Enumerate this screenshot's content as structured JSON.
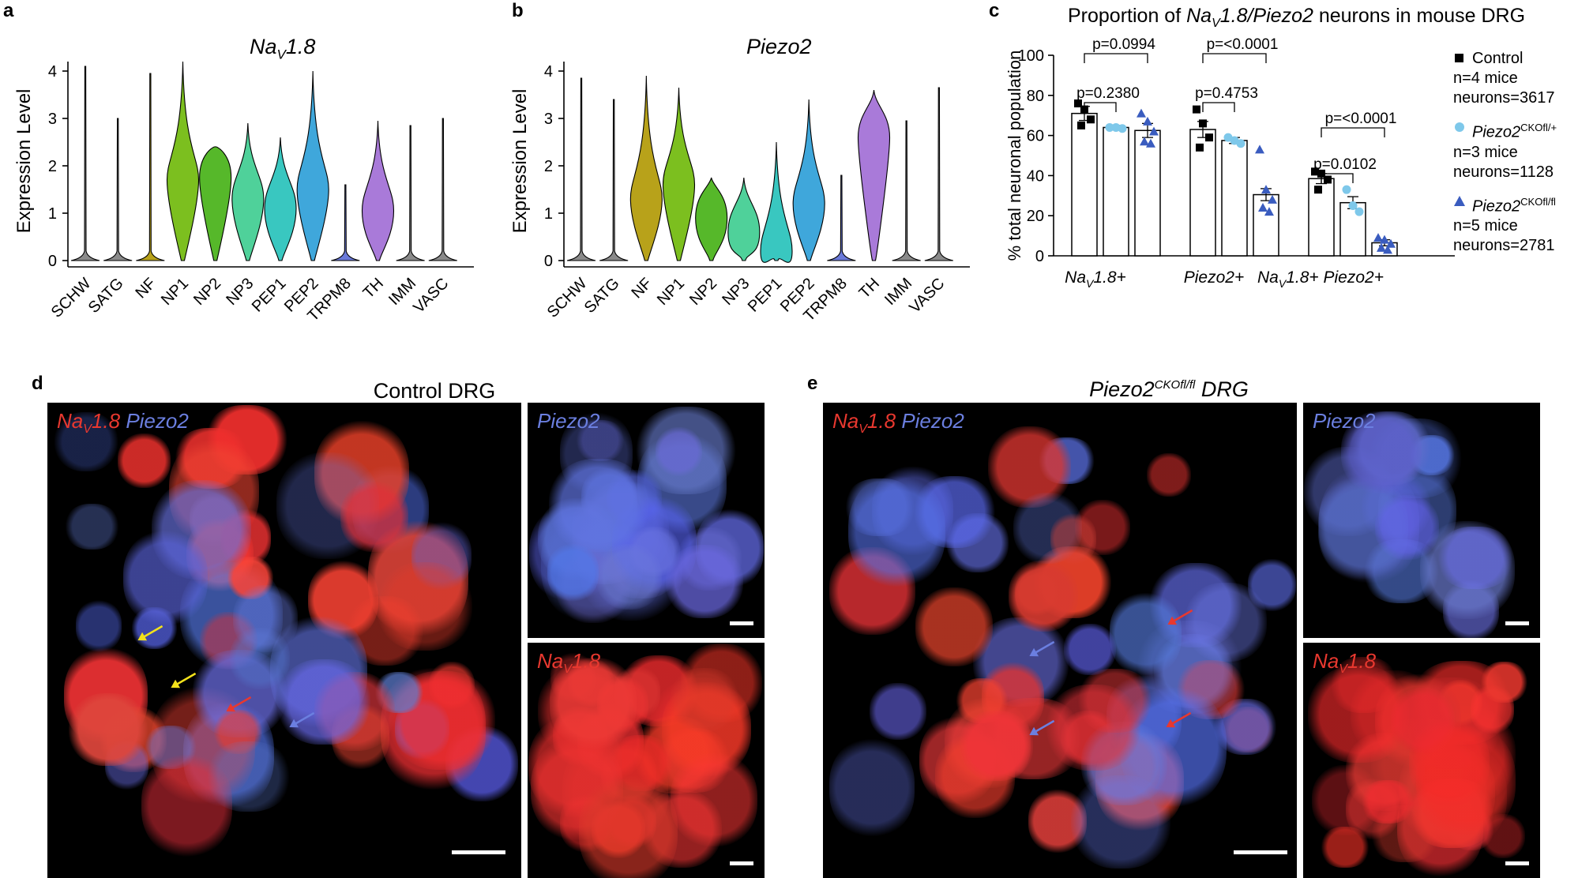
{
  "panels": {
    "a": {
      "letter": "a",
      "title_main": "Na",
      "title_sub": "V",
      "title_tail": "1.8",
      "ylabel": "Expression Level",
      "yticks": [
        "0",
        "1",
        "2",
        "3",
        "4"
      ],
      "categories": [
        "SCHW",
        "SATG",
        "NF",
        "NP1",
        "NP2",
        "NP3",
        "PEP1",
        "PEP2",
        "TRPM8",
        "TH",
        "IMM",
        "VASC"
      ]
    },
    "b": {
      "letter": "b",
      "title": "Piezo2",
      "ylabel": "Expression Level",
      "yticks": [
        "0",
        "1",
        "2",
        "3",
        "4"
      ],
      "categories": [
        "SCHW",
        "SATG",
        "NF",
        "NP1",
        "NP2",
        "NP3",
        "PEP1",
        "PEP2",
        "TRPM8",
        "TH",
        "IMM",
        "VASC"
      ]
    },
    "c": {
      "letter": "c",
      "title_pre": "Proportion of ",
      "title_italic": "Na",
      "title_sub": "V",
      "title_italic2": "1.8/Piezo2",
      "title_post": " neurons in mouse DRG",
      "ylabel": "% total neuronal population",
      "yticks": [
        "0",
        "20",
        "40",
        "60",
        "80",
        "100"
      ],
      "groups": [
        {
          "pre": "Na",
          "sub": "V",
          "post": "1.8+"
        },
        {
          "pre": "Piezo2+",
          "sub": "",
          "post": ""
        },
        {
          "pre": "Na",
          "sub": "V",
          "post": "1.8+ Piezo2+"
        }
      ],
      "pvalues": [
        "p=0.0994",
        "p=0.2380",
        "p=<0.0001",
        "p=0.4753",
        "p=<0.0001",
        "p=0.0102"
      ],
      "legend": [
        {
          "name": "Control",
          "line2": "n=4 mice",
          "line3": "neurons=3617",
          "color": "#000000",
          "marker": "square"
        },
        {
          "name": "Piezo2",
          "sup": "CKOfl/+",
          "line2": "n=3 mice",
          "line3": "neurons=1128",
          "color": "#7ec8ea",
          "marker": "circle"
        },
        {
          "name": "Piezo2",
          "sup": "CKOfl/fl",
          "line2": "n=5 mice",
          "line3": "neurons=2781",
          "color": "#3a5cbf",
          "marker": "triangle"
        }
      ]
    },
    "d": {
      "letter": "d",
      "title": "Control DRG",
      "label_red": "Na",
      "label_sub": "V",
      "label_red_tail": "1.8",
      "label_blue": "Piezo2"
    },
    "e": {
      "letter": "e",
      "title_pre": "Piezo2",
      "title_sup": "CKOfl/fl",
      "title_post": " DRG",
      "label_red": "Na",
      "label_sub": "V",
      "label_red_tail": "1.8",
      "label_blue": "Piezo2"
    }
  },
  "colors": {
    "SCHW": "#8a8a8a",
    "SATG": "#8a8a8a",
    "NF": "#b8a21a",
    "NP1": "#7cbf1f",
    "NP2": "#56b82a",
    "NP3": "#4fd19a",
    "PEP1": "#39c7c0",
    "PEP2": "#3fa7db",
    "TRPM8": "#6a79d9",
    "TH": "#a97ad9",
    "IMM": "#8a8a8a",
    "VASC": "#8a8a8a",
    "red_stain": "#e8382f",
    "blue_stain": "#5a6fd6"
  },
  "chart_data": [
    {
      "type": "violin",
      "title": "NaV1.8",
      "ylabel": "Expression Level",
      "ylim": [
        0,
        4
      ],
      "categories": [
        "SCHW",
        "SATG",
        "NF",
        "NP1",
        "NP2",
        "NP3",
        "PEP1",
        "PEP2",
        "TRPM8",
        "TH",
        "IMM",
        "VASC"
      ],
      "max": [
        4.1,
        3.0,
        3.95,
        4.2,
        2.4,
        2.9,
        2.6,
        4.0,
        1.6,
        2.95,
        2.85,
        3.0
      ],
      "median": [
        0,
        0,
        0,
        1.7,
        1.75,
        1.3,
        1.1,
        1.5,
        0,
        1.05,
        0,
        0
      ]
    },
    {
      "type": "violin",
      "title": "Piezo2",
      "ylabel": "Expression Level",
      "ylim": [
        0,
        4
      ],
      "categories": [
        "SCHW",
        "SATG",
        "NF",
        "NP1",
        "NP2",
        "NP3",
        "PEP1",
        "PEP2",
        "TRPM8",
        "TH",
        "IMM",
        "VASC"
      ],
      "max": [
        3.85,
        3.4,
        3.9,
        3.65,
        1.75,
        1.75,
        2.5,
        3.4,
        1.8,
        3.6,
        2.95,
        3.65
      ],
      "median": [
        0,
        0,
        1.3,
        1.6,
        0.9,
        0.6,
        0.2,
        1.2,
        0,
        2.6,
        0,
        0
      ]
    },
    {
      "type": "bar",
      "title": "Proportion of NaV1.8/Piezo2 neurons in mouse DRG",
      "ylabel": "% total neuronal population",
      "ylim": [
        0,
        100
      ],
      "categories": [
        "NaV1.8+",
        "Piezo2+",
        "NaV1.8+ Piezo2+"
      ],
      "series": [
        {
          "name": "Control",
          "values": [
            71,
            63,
            38.5
          ],
          "sem": [
            3.5,
            4,
            2.5
          ],
          "points": [
            [
              76,
              73,
              68,
              65
            ],
            [
              73,
              66,
              59,
              54
            ],
            [
              42,
              41,
              38,
              33
            ]
          ]
        },
        {
          "name": "Piezo2 CKOfl/+",
          "values": [
            64,
            57.5,
            26.5
          ],
          "sem": [
            1,
            1.5,
            3
          ],
          "points": [
            [
              64,
              64,
              63.5
            ],
            [
              59,
              57.5,
              56
            ],
            [
              33,
              25,
              22
            ]
          ]
        },
        {
          "name": "Piezo2 CKOfl/fl",
          "values": [
            62.5,
            30.5,
            6.5
          ],
          "sem": [
            3.5,
            3,
            1.5
          ],
          "points": [
            [
              71,
              67,
              62,
              57,
              56
            ],
            [
              53,
              33,
              28,
              24,
              22
            ],
            [
              9,
              8,
              6,
              4,
              3
            ]
          ]
        }
      ],
      "comparisons": [
        {
          "group": "NaV1.8+",
          "between": [
            "Control",
            "Piezo2 CKOfl/fl"
          ],
          "p": "p=0.0994"
        },
        {
          "group": "NaV1.8+",
          "between": [
            "Control",
            "Piezo2 CKOfl/+"
          ],
          "p": "p=0.2380"
        },
        {
          "group": "Piezo2+",
          "between": [
            "Control",
            "Piezo2 CKOfl/fl"
          ],
          "p": "p=<0.0001"
        },
        {
          "group": "Piezo2+",
          "between": [
            "Control",
            "Piezo2 CKOfl/+"
          ],
          "p": "p=0.4753"
        },
        {
          "group": "NaV1.8+ Piezo2+",
          "between": [
            "Control",
            "Piezo2 CKOfl/fl"
          ],
          "p": "p=<0.0001"
        },
        {
          "group": "NaV1.8+ Piezo2+",
          "between": [
            "Control",
            "Piezo2 CKOfl/+"
          ],
          "p": "p=0.0102"
        }
      ]
    }
  ]
}
